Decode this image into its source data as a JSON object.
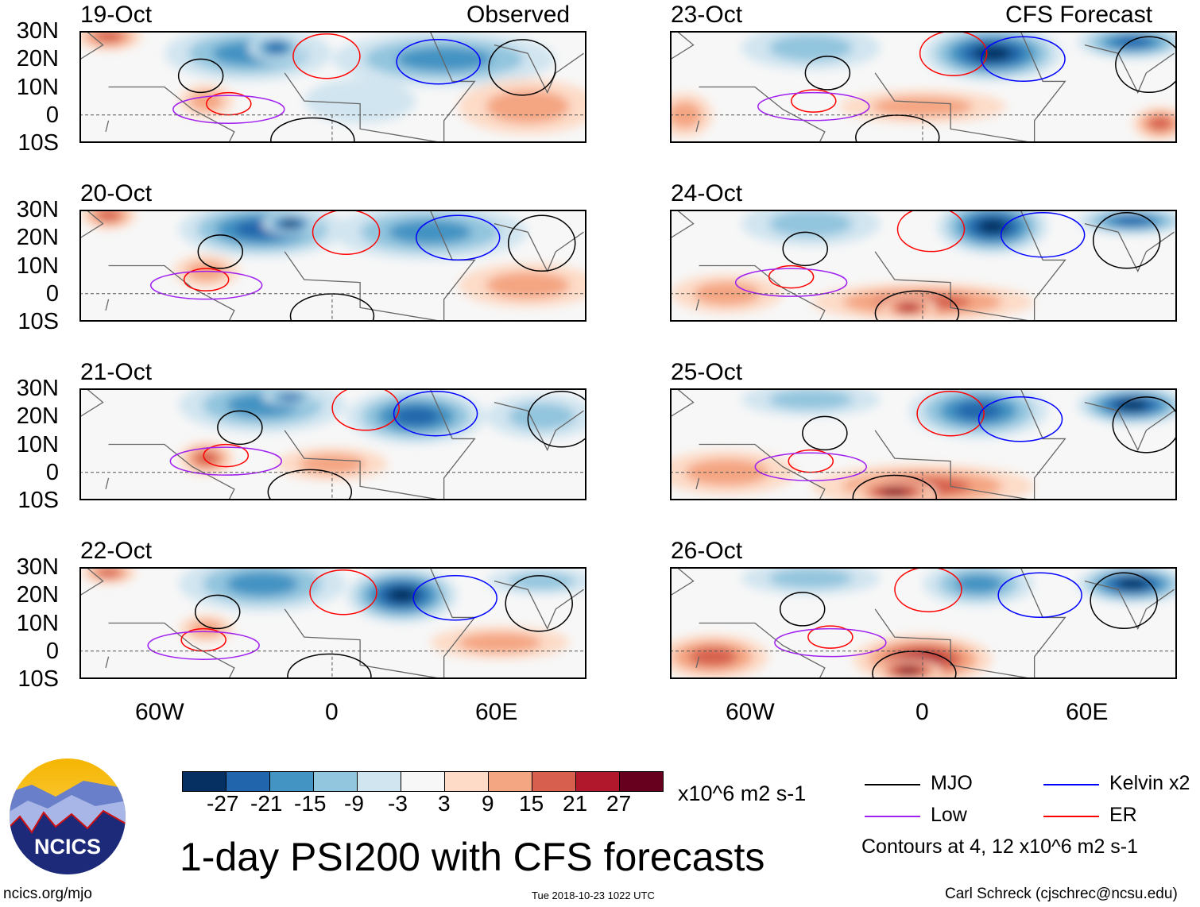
{
  "left_column": {
    "label": "Observed",
    "dates": [
      "19-Oct",
      "20-Oct",
      "21-Oct",
      "22-Oct"
    ]
  },
  "right_column": {
    "label": "CFS Forecast",
    "dates": [
      "23-Oct",
      "24-Oct",
      "25-Oct",
      "26-Oct"
    ]
  },
  "lat_ticks": [
    "30N",
    "20N",
    "10N",
    "0",
    "10S"
  ],
  "lon_ticks": [
    "60W",
    "0",
    "60E"
  ],
  "colorbar": {
    "ticks": [
      "-27",
      "-21",
      "-15",
      "-9",
      "-3",
      "3",
      "9",
      "15",
      "21",
      "27"
    ],
    "colors": [
      "#053061",
      "#2166ac",
      "#4393c3",
      "#92c5de",
      "#d1e5f0",
      "#f7f7f7",
      "#fddbc7",
      "#f4a582",
      "#d6604d",
      "#b2182b",
      "#67001f"
    ],
    "units": "x10^6 m2 s-1"
  },
  "legend": {
    "items": [
      {
        "label": "MJO",
        "color": "#000000"
      },
      {
        "label": "Kelvin x2",
        "color": "#0000ff"
      },
      {
        "label": "Low",
        "color": "#a020f0"
      },
      {
        "label": "ER",
        "color": "#ff0000"
      }
    ],
    "note": "Contours at 4, 12 x10^6 m2 s-1"
  },
  "title": "1-day PSI200 with CFS forecasts",
  "logo_text": "NCICS",
  "footer": {
    "url": "ncics.org/mjo",
    "timestamp": "Tue 2018-10-23 1022 UTC",
    "credit": "Carl Schreck (cjschrec@ncsu.edu)"
  }
}
